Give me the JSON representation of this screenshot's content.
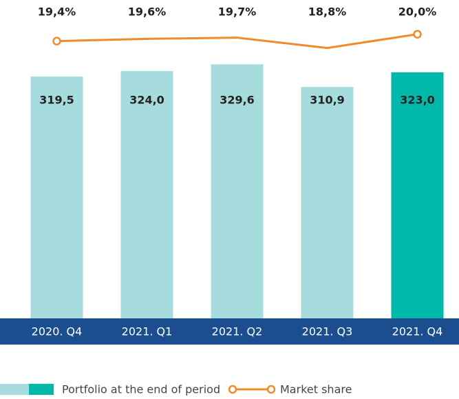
{
  "chart_data": {
    "type": "bar",
    "categories": [
      "2020. Q4",
      "2021. Q1",
      "2021. Q2",
      "2021. Q3",
      "2021. Q4"
    ],
    "ylim": [
      120,
      340
    ],
    "y2lim": [
      18,
      21
    ],
    "series": [
      {
        "name": "Portfolio at the end of period",
        "type": "bar",
        "colors": [
          "#a6dcdd",
          "#a6dcdd",
          "#a6dcdd",
          "#a6dcdd",
          "#00b9aa"
        ],
        "values": [
          319.5,
          324.0,
          329.6,
          310.9,
          323.0
        ],
        "value_labels": [
          "319,5",
          "324,0",
          "329,6",
          "310,9",
          "323,0"
        ]
      },
      {
        "name": "Market share",
        "type": "line",
        "axis": "y2",
        "color": "#f08a2c",
        "values": [
          19.4,
          19.6,
          19.7,
          18.8,
          20.0
        ],
        "value_labels": [
          "19,4%",
          "19,6%",
          "19,7%",
          "18,8%",
          "20,0%"
        ]
      }
    ]
  }
}
